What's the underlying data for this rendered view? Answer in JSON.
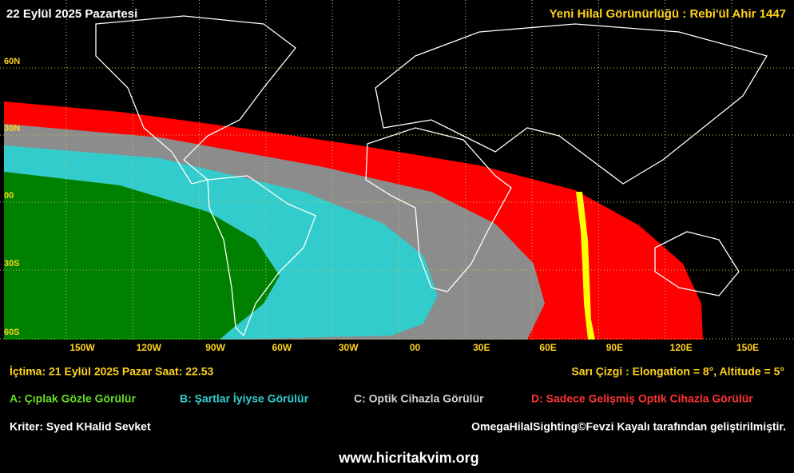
{
  "header": {
    "date": "22 Eylül 2025 Pazartesi",
    "title": "Yeni Hilal Görünürlüğü : Rebi'ül Ahir 1447"
  },
  "map": {
    "lat_labels": [
      "60N",
      "30N",
      "00",
      "30S",
      "60S"
    ],
    "lon_labels": [
      "150W",
      "120W",
      "90W",
      "60W",
      "30W",
      "00",
      "30E",
      "60E",
      "90E",
      "120E",
      "150E"
    ]
  },
  "info": {
    "conjunction": "İçtima: 21 Eylül 2025 Pazar Saat: 22.53",
    "yellow_line": "Sarı Çizgi : Elongation = 8°, Altitude = 5°"
  },
  "legend": [
    "A: Çıplak Gözle Görülür",
    "B: Şartlar İyiyse Görülür",
    "C: Optik Cihazla Görülür",
    "D: Sadece Gelişmiş Optik Cihazla Görülür"
  ],
  "footer": {
    "criterion": "Kriter: Syed KHalid Sevket",
    "credit": "OmegaHilalSighting©Fevzi Kayalı tarafından geliştirilmiştir.",
    "website": "www.hicritakvim.org"
  }
}
